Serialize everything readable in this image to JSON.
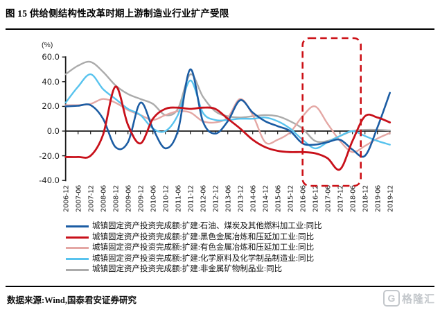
{
  "title": "图 15 供给侧结构性改革时期上游制造业行业扩产受限",
  "source_note": "数据来源:Wind,国泰君安证券研究",
  "watermark": {
    "logo_letter": "G",
    "brand": "格隆汇"
  },
  "colors": {
    "axis": "#1a1a1a",
    "highlight_box": "#cc1016",
    "text": "#222222"
  },
  "chart_data": {
    "type": "line",
    "title": "供给侧结构性改革时期上游制造业行业扩产受限",
    "unit_label": "(%)",
    "xlabel": "",
    "ylabel": "%",
    "ylim": [
      -40,
      60
    ],
    "y_ticks": [
      60,
      40,
      20,
      0,
      -20,
      -40
    ],
    "y_tick_labels": [
      "60.0",
      "40.0",
      "20.0",
      "0.0",
      "-20.0",
      "-40.0"
    ],
    "grid": false,
    "legend_position": "bottom-left",
    "x_labels": [
      "2006-12",
      "2007-06",
      "2007-12",
      "2008-06",
      "2008-12",
      "2009-06",
      "2009-12",
      "2010-06",
      "2010-12",
      "2011-06",
      "2011-12",
      "2012-06",
      "2012-12",
      "2013-06",
      "2013-12",
      "2014-06",
      "2014-12",
      "2015-06",
      "2015-12",
      "2016-06",
      "2016-12",
      "2017-06",
      "2017-12",
      "2018-06",
      "2018-12",
      "2019-06",
      "2019-12"
    ],
    "highlight_box": {
      "from": "2016-06",
      "to": "2018-10",
      "style": "dashed-rounded",
      "color": "#cc1016"
    },
    "series": [
      {
        "name": "城镇固定资产投资完成额:扩建:石油、煤炭及其他燃料加工业:同比",
        "color": "#1b5ca3",
        "width": 2.6,
        "values": [
          20,
          20.5,
          21,
          10,
          -13,
          -9,
          23,
          2,
          -14,
          0,
          50,
          8,
          -2,
          8,
          25,
          15,
          8,
          4,
          0,
          -10,
          -11,
          -9,
          -7,
          -15,
          -20,
          3,
          31
        ]
      },
      {
        "name": "城镇固定资产投资完成额:扩建:黑色金属冶炼和压延加工业:同比",
        "color": "#c8101a",
        "width": 2.8,
        "values": [
          -21,
          -21,
          -20,
          -3,
          36,
          5,
          -10,
          10,
          18,
          19,
          18,
          19,
          18,
          10,
          2,
          -7,
          -13,
          -16,
          -17,
          -17,
          -18,
          -22,
          -31,
          -8,
          12,
          11,
          7
        ]
      },
      {
        "name": "城镇固定资产投资完成额:扩建:有色金属冶炼和压延加工业:同比",
        "color": "#e4a7a4",
        "width": 2.4,
        "values": [
          21,
          21,
          22,
          26,
          23,
          17,
          13,
          9,
          13,
          16,
          15,
          8,
          7,
          11,
          26,
          13,
          -9,
          -7,
          -1,
          12,
          20,
          6,
          -8,
          -17,
          -12,
          -6,
          -1.5
        ]
      },
      {
        "name": "城镇固定资产投资完成额:扩建:化学原料及化学制品制造业:同比",
        "color": "#58c3ee",
        "width": 2.4,
        "values": [
          23,
          36,
          46,
          34,
          26,
          18,
          13,
          2,
          0,
          13,
          41,
          15,
          9,
          9,
          10,
          10,
          11,
          8,
          2,
          -7,
          -14,
          -9,
          -4,
          0,
          -4,
          -8,
          -11
        ]
      },
      {
        "name": "城镇固定资产投资完成额:扩建:非金属矿物制品业:同比",
        "color": "#ababab",
        "width": 2.4,
        "values": [
          46,
          53,
          56,
          48,
          37,
          30,
          26,
          22,
          13,
          18,
          46,
          28,
          16,
          12,
          11,
          12,
          13,
          12,
          8,
          2,
          -8,
          -8,
          -4,
          0,
          1,
          1,
          0.5
        ]
      }
    ]
  }
}
